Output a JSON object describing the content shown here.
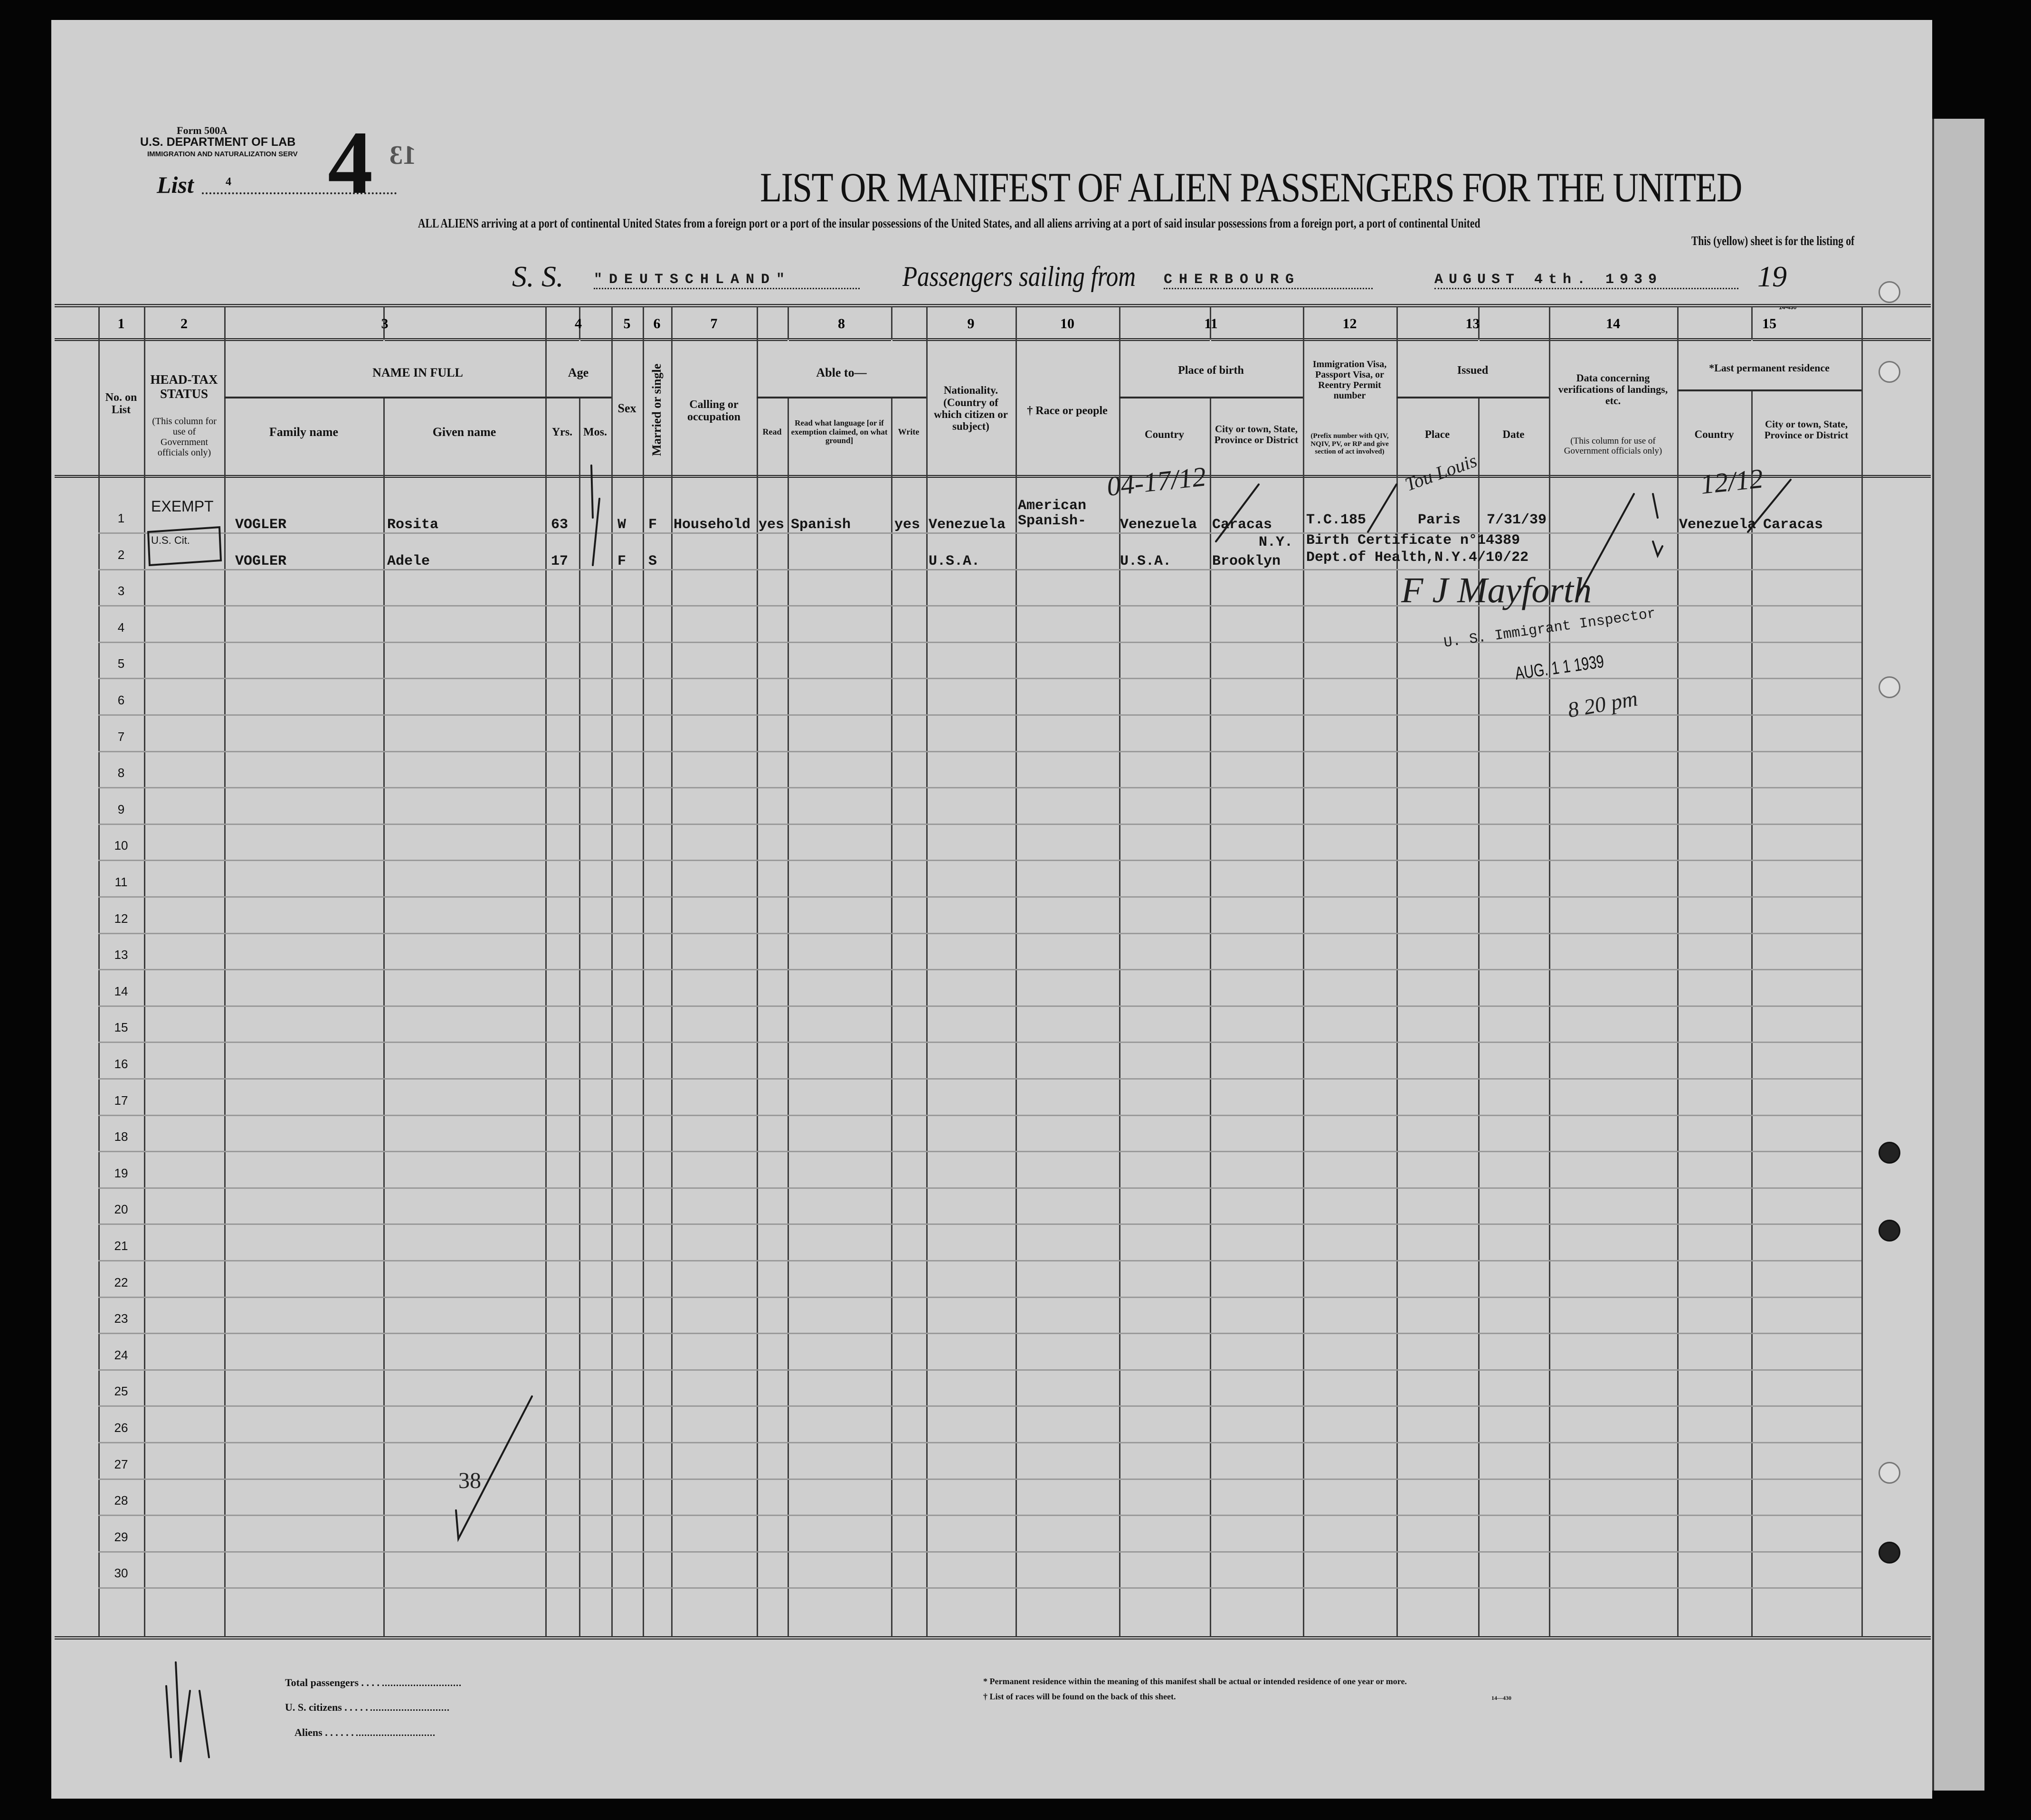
{
  "header": {
    "form_number": "Form 500A",
    "department": "U.S. DEPARTMENT OF LAB",
    "service": "IMMIGRATION AND NATURALIZATION SERV",
    "list_label": "List",
    "list_value": "4",
    "list_big_number": "4",
    "stamp_number": "13",
    "title": "LIST OR MANIFEST OF ALIEN PASSENGERS FOR THE UNITED",
    "subtitle": "ALL ALIENS arriving at a port of continental United States from a foreign port or a port of the insular possessions of the United States, and all aliens arriving at a port of said insular possessions from a foreign port, a port of continental United",
    "subtitle2": "This (yellow) sheet is for the listing of",
    "ss_label": "S. S.",
    "ship_name": "\"DEUTSCHLAND\"",
    "sailing_label": "Passengers sailing from",
    "port": "CHERBOURG",
    "date": "AUGUST 4th. 1939",
    "year_label": "19",
    "form_code": "14-430"
  },
  "columns": {
    "numbers": [
      "1",
      "2",
      "3",
      "4",
      "5",
      "6",
      "7",
      "8",
      "9",
      "10",
      "11",
      "12",
      "13",
      "14",
      "15"
    ],
    "no_on_list": "No. on List",
    "head_tax": "HEAD-TAX STATUS",
    "head_tax_note": "(This column for use of Government officials only)",
    "name_in_full": "NAME IN FULL",
    "family_name": "Family name",
    "given_name": "Given name",
    "age": "Age",
    "yrs": "Yrs.",
    "mos": "Mos.",
    "sex": "Sex",
    "married": "Married or single",
    "calling": "Calling or occupation",
    "able_to": "Able to—",
    "read": "Read",
    "read_language": "Read what language [or if exemption claimed, on what ground]",
    "write": "Write",
    "nationality": "Nationality. (Country of which citizen or subject)",
    "race": "† Race or people",
    "place_of_birth": "Place of birth",
    "birth_country": "Country",
    "birth_city": "City or town, State, Province or District",
    "visa": "Immigration Visa, Passport Visa, or Reentry Permit number",
    "visa_note": "(Prefix number with QIV, NQIV, PV, or RP and give section of act involved)",
    "issued": "Issued",
    "issued_place": "Place",
    "issued_date": "Date",
    "landing_data": "Data concerning verifications of landings, etc.",
    "landing_note": "(This column for use of Government officials only)",
    "last_residence": "*Last permanent residence",
    "res_country": "Country",
    "res_city": "City or town, State, Province or District"
  },
  "row_numbers": [
    "1",
    "2",
    "3",
    "4",
    "5",
    "6",
    "7",
    "8",
    "9",
    "10",
    "11",
    "12",
    "13",
    "14",
    "15",
    "16",
    "17",
    "18",
    "19",
    "20",
    "21",
    "22",
    "23",
    "24",
    "25",
    "26",
    "27",
    "28",
    "29",
    "30"
  ],
  "passengers": [
    {
      "head_tax": "EXEMPT",
      "family": "VOGLER",
      "given": "Rosita",
      "yrs": "63",
      "sex": "W",
      "married": "F",
      "calling": "Household",
      "read": "yes",
      "language": "Spanish",
      "write": "yes",
      "nationality": "Venezuela",
      "race_1": "American",
      "race_2": "Spanish-",
      "birth_country": "Venezuela",
      "birth_city": "Caracas",
      "visa": "T.C.185",
      "issued_place": "Paris",
      "issued_date": "7/31/39",
      "res_country": "Venezuela",
      "res_city": "Caracas"
    },
    {
      "head_tax": "U.S. Cit.",
      "family": "VOGLER",
      "given": "Adele",
      "yrs": "17",
      "sex": "F",
      "married": "S",
      "nationality": "U.S.A.",
      "birth_country": "U.S.A.",
      "birth_city_state": "N.Y.",
      "birth_city": "Brooklyn",
      "visa_line1": "Birth Certificate n°14389",
      "visa_line2": "Dept.of Health,N.Y.4/10/22"
    }
  ],
  "annotations": {
    "birth_mark": "04-17/12",
    "residence_mark": "12/12",
    "issued_mark": "Tou Louis",
    "inspector_signature": "F J Mayforth",
    "inspector_title": "U. S. Immigrant Inspector",
    "inspection_date": "AUG. 1 1 1939",
    "time_note": "8 20 pm",
    "tally": "38"
  },
  "footer": {
    "total_passengers": "Total passengers",
    "us_citizens": "U. S. citizens",
    "aliens": "Aliens",
    "note_residence": "* Permanent residence within the meaning of this manifest shall be actual or intended residence of one year or more.",
    "note_races": "† List of races will be found on the back of this sheet.",
    "form_code": "14—430"
  }
}
